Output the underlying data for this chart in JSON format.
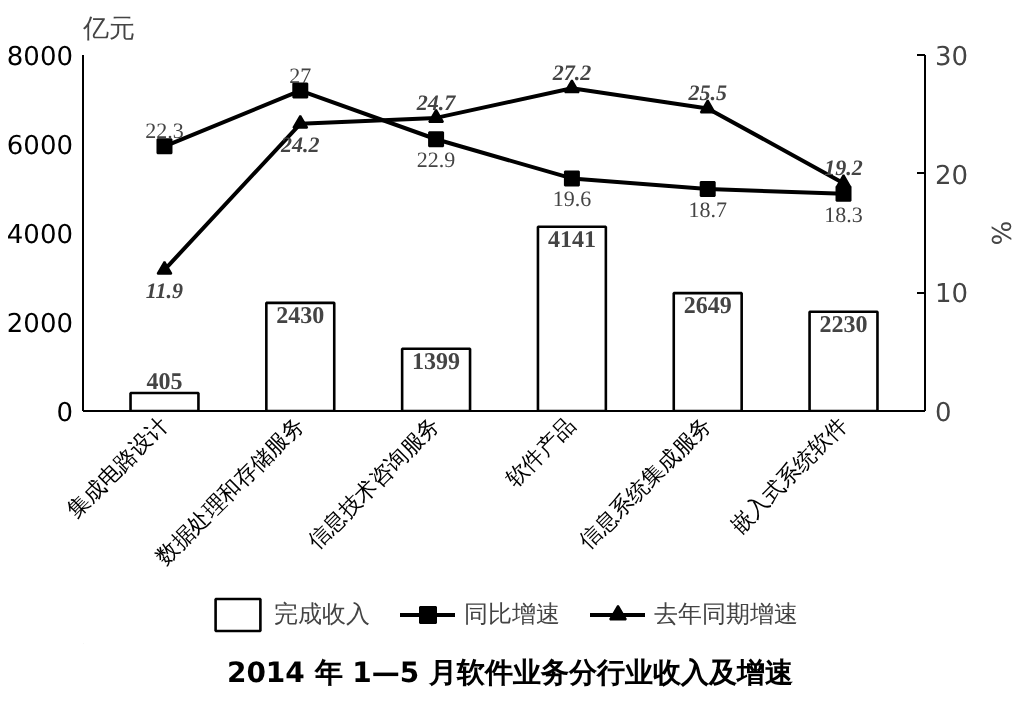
{
  "chart_data": {
    "type": "bar",
    "title": "2014 年 1—5 月软件业务分行业收入及增速",
    "ylabel": "亿元",
    "y2label": "%",
    "categories": [
      "集成电路设计",
      "数据处理和存储服务",
      "信息技术咨询服务",
      "软件产品",
      "信息系统集成服务",
      "嵌入式系统软件"
    ],
    "series": [
      {
        "name": "完成收入",
        "color": "#ffffff",
        "values": [
          405,
          2430,
          1399,
          4141,
          2649,
          2230
        ]
      },
      {
        "name": "同比增速",
        "type": "line",
        "axis": "y2",
        "marker": "square",
        "color": "#000000",
        "values": [
          22.3,
          27,
          22.9,
          19.6,
          18.7,
          18.3
        ]
      },
      {
        "name": "去年同期增速",
        "type": "line",
        "axis": "y2",
        "marker": "triangle",
        "color": "#000000",
        "values": [
          11.9,
          24.2,
          24.7,
          27.2,
          25.5,
          19.2
        ]
      }
    ],
    "ylim": [
      0,
      8000
    ],
    "yticks": [
      0,
      2000,
      4000,
      6000,
      8000
    ],
    "y2lim": [
      0,
      30
    ],
    "y2ticks": [
      0,
      10,
      20,
      30
    ],
    "data_labels": true,
    "legend": "bottom",
    "grid": false,
    "line_style": "solid"
  }
}
